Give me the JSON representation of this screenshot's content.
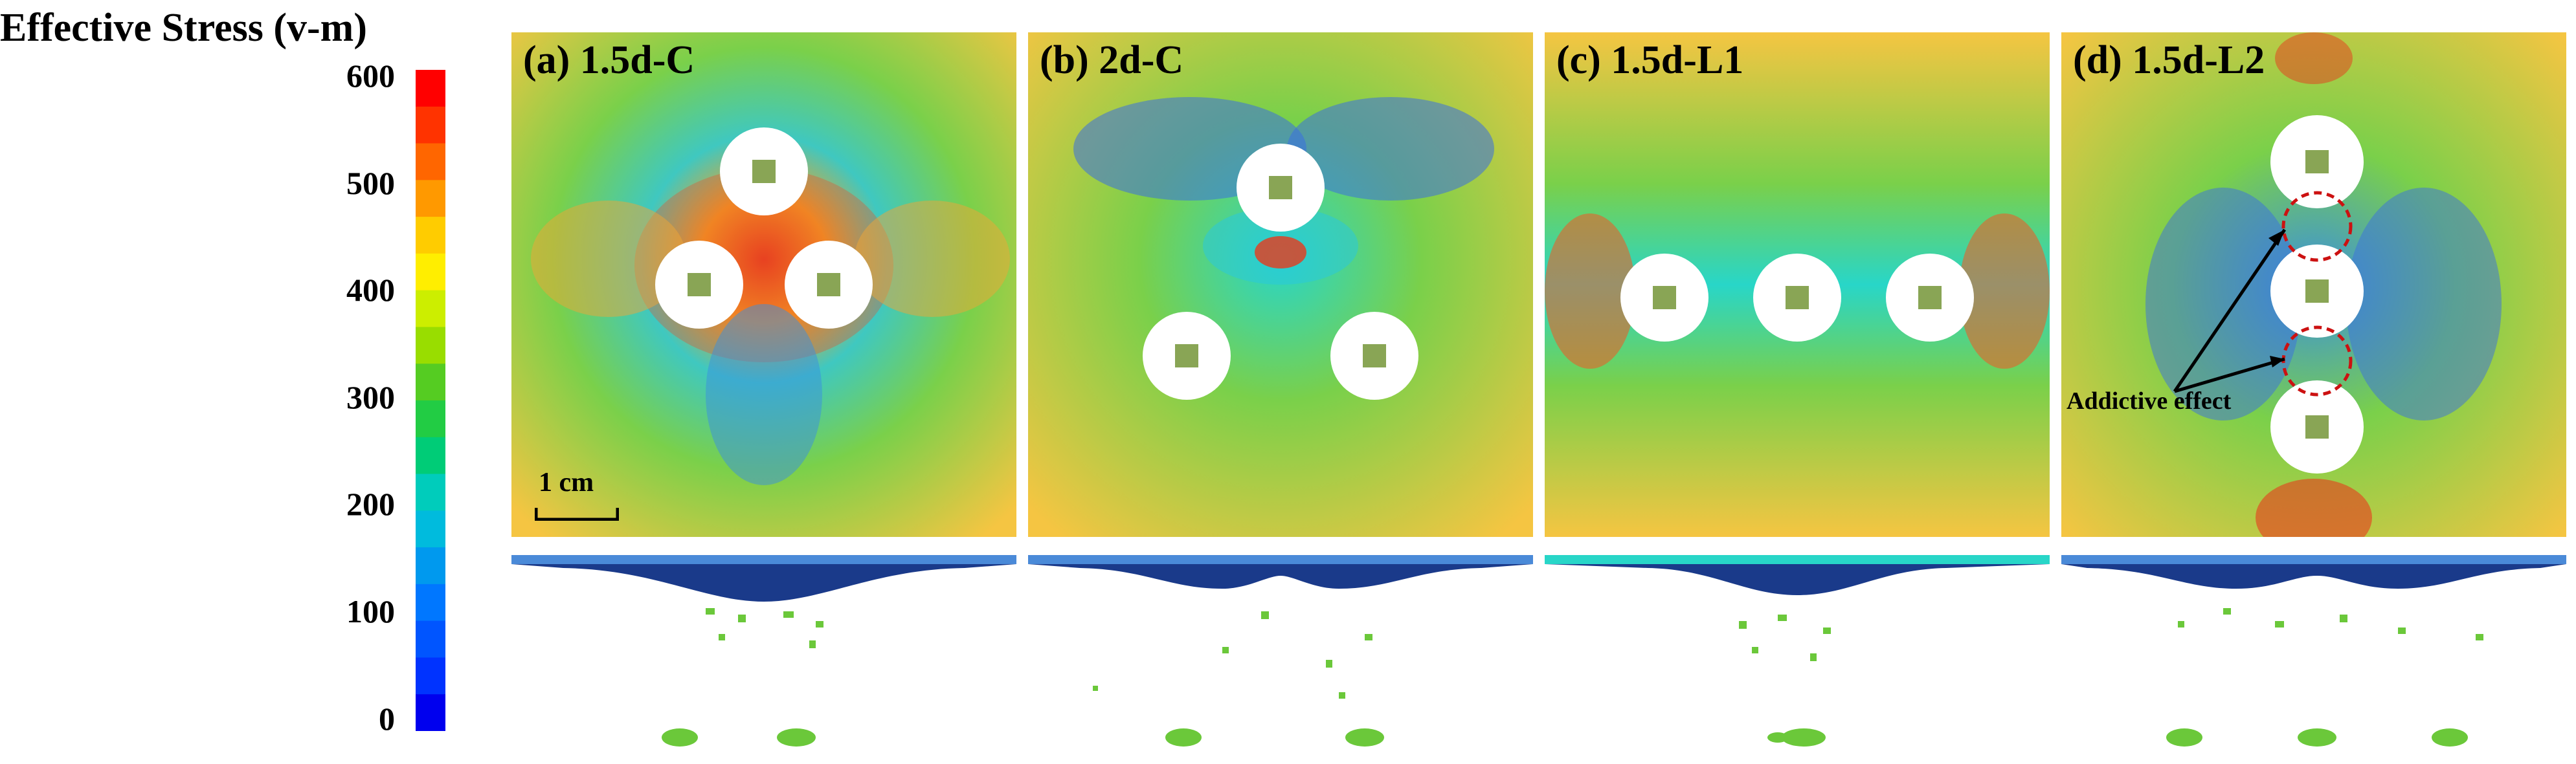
{
  "colorbar": {
    "title": "Effective Stress (v-m)",
    "ticks": [
      "600",
      "500",
      "400",
      "300",
      "200",
      "100",
      "0"
    ],
    "range": [
      0,
      600
    ],
    "colors": [
      "#ff0000",
      "#ff3300",
      "#ff6600",
      "#ff9900",
      "#ffcc00",
      "#ffee00",
      "#ccee00",
      "#99dd00",
      "#55cc22",
      "#22cc44",
      "#00cc77",
      "#00ccbb",
      "#00bbdd",
      "#0099ee",
      "#0077ff",
      "#0055ff",
      "#0033ff",
      "#0000ee"
    ]
  },
  "panels": [
    {
      "label": "(a) 1.5d-C",
      "scale_label": "1 cm"
    },
    {
      "label": "(b) 2d-C"
    },
    {
      "label": "(c) 1.5d-L1"
    },
    {
      "label": "(d) 1.5d-L2",
      "annotation": "Addictive effect"
    }
  ],
  "palette": {
    "background_high": "#f5c542",
    "background_mid": "#7ad04a",
    "low": "#3a6fe0",
    "cyan": "#28d6c8",
    "high": "#e83a1c",
    "section_top": "#4a8ad8"
  }
}
